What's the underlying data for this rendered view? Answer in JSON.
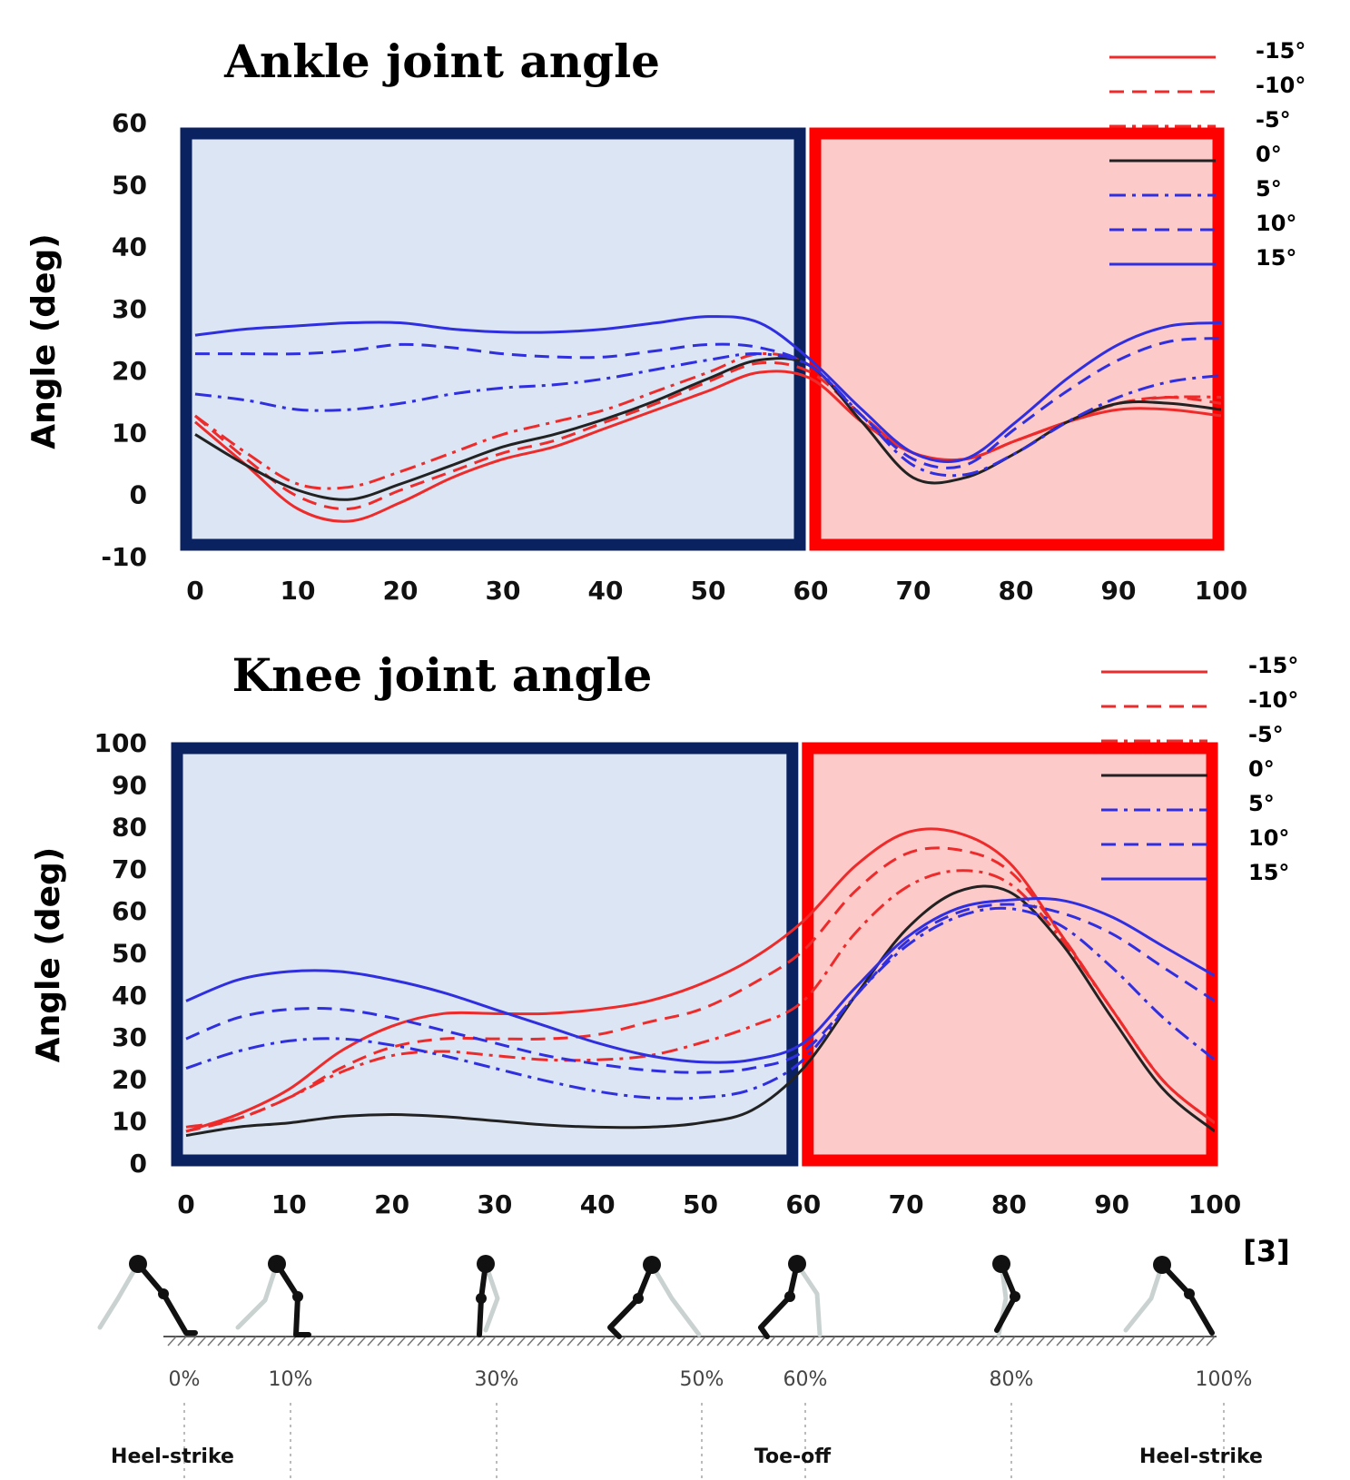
{
  "chart_data": [
    {
      "type": "line",
      "title": "Ankle joint angle",
      "y_label": "Angle (deg)",
      "x": [
        0,
        5,
        10,
        15,
        20,
        25,
        30,
        35,
        40,
        45,
        50,
        55,
        60,
        65,
        70,
        75,
        80,
        85,
        90,
        95,
        100
      ],
      "xlim": [
        0,
        100
      ],
      "xticks": [
        0,
        10,
        20,
        30,
        40,
        50,
        60,
        70,
        80,
        90,
        100
      ],
      "ylim": [
        -10,
        60
      ],
      "yticks": [
        -10,
        0,
        10,
        20,
        30,
        40,
        50,
        60
      ],
      "regions": [
        {
          "from": 0,
          "to": 60,
          "color": "#dbe5f3",
          "border": "#0b2260"
        },
        {
          "from": 60,
          "to": 100,
          "color": "#fdcaca",
          "border": "#ff0000"
        }
      ],
      "series": [
        {
          "name": "-15°",
          "color": "#ee2b2b",
          "linestyle": "solid",
          "values": [
            12,
            5,
            -2,
            -4,
            -1,
            3,
            6,
            8,
            11,
            14,
            17,
            20,
            19,
            12,
            7,
            6,
            9,
            12,
            14,
            14,
            13
          ]
        },
        {
          "name": "-10°",
          "color": "#ee2b2b",
          "linestyle": "dashed",
          "values": [
            13,
            6,
            0,
            -2,
            1,
            4,
            7,
            9,
            12,
            15,
            18.5,
            21.5,
            20,
            13,
            7,
            6,
            9,
            12,
            15,
            16,
            15
          ]
        },
        {
          "name": "-5°",
          "color": "#ee2b2b",
          "linestyle": "dashdot",
          "values": [
            13,
            7,
            2,
            1.5,
            4,
            7,
            10,
            12,
            14,
            17,
            20,
            23,
            21,
            13,
            7,
            6,
            9,
            12,
            15,
            16,
            16
          ]
        },
        {
          "name": "0°",
          "color": "#222222",
          "linestyle": "solid",
          "values": [
            10,
            5,
            1,
            -0.5,
            2,
            5,
            8,
            10,
            12.5,
            15.5,
            19,
            22,
            21,
            12,
            3,
            3,
            7,
            12,
            15,
            15,
            14
          ]
        },
        {
          "name": "5°",
          "color": "#2f2fe0",
          "linestyle": "dashdot",
          "values": [
            16.5,
            15.5,
            14,
            14,
            15,
            16.5,
            17.5,
            18,
            19,
            20.5,
            22,
            23,
            21,
            13,
            5,
            3.5,
            7,
            12,
            16,
            18.5,
            19.5
          ]
        },
        {
          "name": "10°",
          "color": "#2f2fe0",
          "linestyle": "dashed",
          "values": [
            23,
            23,
            23,
            23.5,
            24.5,
            24,
            23,
            22.5,
            22.5,
            23.5,
            24.5,
            24,
            21,
            13,
            6,
            5,
            11,
            17,
            22,
            25,
            25.5
          ]
        },
        {
          "name": "15°",
          "color": "#2f2fe0",
          "linestyle": "solid",
          "values": [
            26,
            27,
            27.5,
            28,
            28,
            27,
            26.5,
            26.5,
            27,
            28,
            29,
            28,
            22,
            14,
            7,
            6,
            12,
            19,
            24.5,
            27.5,
            28
          ]
        }
      ]
    },
    {
      "type": "line",
      "title": "Knee joint angle",
      "y_label": "Angle (deg)",
      "x": [
        0,
        5,
        10,
        15,
        20,
        25,
        30,
        35,
        40,
        45,
        50,
        55,
        60,
        65,
        70,
        75,
        80,
        85,
        90,
        95,
        100
      ],
      "xlim": [
        0,
        100
      ],
      "xticks": [
        0,
        10,
        20,
        30,
        40,
        50,
        60,
        70,
        80,
        90,
        100
      ],
      "ylim": [
        0,
        100
      ],
      "yticks": [
        0,
        10,
        20,
        30,
        40,
        50,
        60,
        70,
        80,
        90,
        100
      ],
      "regions": [
        {
          "from": 0,
          "to": 60,
          "color": "#dbe5f3",
          "border": "#0b2260"
        },
        {
          "from": 60,
          "to": 100,
          "color": "#fdcaca",
          "border": "#ff0000"
        }
      ],
      "series": [
        {
          "name": "-15°",
          "color": "#ee2b2b",
          "linestyle": "solid",
          "values": [
            8,
            12,
            18,
            27,
            33,
            36,
            36,
            36,
            37,
            39,
            43,
            49,
            58,
            71,
            79,
            79,
            72,
            55,
            37,
            20,
            10
          ]
        },
        {
          "name": "-10°",
          "color": "#ee2b2b",
          "linestyle": "dashed",
          "values": [
            8,
            11,
            16,
            23,
            28,
            30,
            30,
            30,
            31,
            34,
            37,
            43,
            51,
            65,
            74,
            75,
            70,
            55,
            37,
            20,
            10
          ]
        },
        {
          "name": "-5°",
          "color": "#ee2b2b",
          "linestyle": "dashdot",
          "values": [
            9,
            11,
            16,
            22,
            26,
            27,
            26,
            25,
            25,
            26,
            29,
            33,
            39,
            55,
            66,
            70,
            67,
            54,
            37,
            20,
            10
          ]
        },
        {
          "name": "0°",
          "color": "#222222",
          "linestyle": "solid",
          "values": [
            7,
            9,
            10,
            11.5,
            12,
            11.5,
            10.5,
            9.5,
            9,
            9,
            10,
            13,
            23,
            40,
            56,
            65,
            65,
            53,
            35,
            18,
            8
          ]
        },
        {
          "name": "5°",
          "color": "#2f2fe0",
          "linestyle": "dashdot",
          "values": [
            23,
            27,
            29.5,
            30,
            28.5,
            26,
            23,
            20,
            17.5,
            16,
            16,
            18,
            25,
            40,
            52,
            59,
            61,
            57,
            47,
            35,
            25
          ]
        },
        {
          "name": "10°",
          "color": "#2f2fe0",
          "linestyle": "dashed",
          "values": [
            30,
            35,
            37,
            37,
            35,
            32,
            29,
            26,
            24,
            22.5,
            22,
            23,
            27,
            40,
            53,
            60,
            62,
            60,
            55,
            47,
            39
          ]
        },
        {
          "name": "15°",
          "color": "#2f2fe0",
          "linestyle": "solid",
          "values": [
            39,
            44,
            46,
            46,
            44,
            41,
            37,
            33,
            29,
            26,
            24.5,
            25,
            29,
            42,
            54,
            61,
            63,
            63,
            59,
            52,
            45
          ]
        }
      ]
    }
  ],
  "citation": "[3]",
  "gait": {
    "percent_labels": [
      "0%",
      "10%",
      "30%",
      "50%",
      "60%",
      "80%",
      "100%"
    ],
    "events": [
      "Heel-strike",
      "Toe-off",
      "Heel-strike"
    ]
  }
}
